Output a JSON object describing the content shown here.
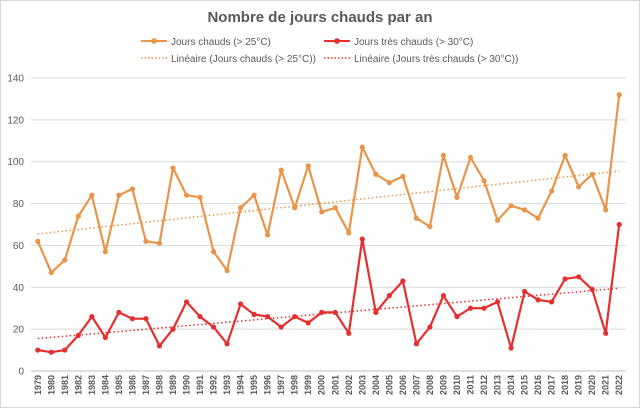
{
  "chart_data": {
    "type": "line",
    "title": "Nombre de jours chauds par an",
    "xlabel": "",
    "ylabel": "",
    "ylim": [
      0,
      140
    ],
    "yticks": [
      0,
      20,
      40,
      60,
      80,
      100,
      120,
      140
    ],
    "grid": true,
    "legend_position": "top",
    "x": [
      1979,
      1980,
      1981,
      1982,
      1983,
      1984,
      1985,
      1986,
      1987,
      1988,
      1989,
      1990,
      1991,
      1992,
      1993,
      1994,
      1995,
      1996,
      1997,
      1998,
      1999,
      2000,
      2001,
      2002,
      2003,
      2004,
      2005,
      2006,
      2007,
      2008,
      2009,
      2010,
      2011,
      2012,
      2013,
      2014,
      2015,
      2016,
      2017,
      2018,
      2019,
      2020,
      2021,
      2022
    ],
    "series": [
      {
        "name": "Jours chauds (> 25°C)",
        "color": "#e8954a",
        "values": [
          62,
          47,
          53,
          74,
          84,
          57,
          84,
          87,
          62,
          61,
          97,
          84,
          83,
          57,
          48,
          78,
          84,
          65,
          96,
          78,
          98,
          76,
          78,
          66,
          107,
          94,
          90,
          93,
          73,
          69,
          103,
          83,
          102,
          91,
          72,
          79,
          77,
          73,
          86,
          103,
          88,
          94,
          77,
          132
        ]
      },
      {
        "name": "Jours très chauds (> 30°C)",
        "color": "#e52f2f",
        "values": [
          10,
          9,
          10,
          17,
          26,
          16,
          28,
          25,
          25,
          12,
          20,
          33,
          26,
          21,
          13,
          32,
          27,
          26,
          21,
          26,
          23,
          28,
          28,
          18,
          63,
          28,
          36,
          43,
          13,
          21,
          36,
          26,
          30,
          30,
          33,
          11,
          38,
          34,
          33,
          44,
          45,
          39,
          18,
          70
        ]
      }
    ],
    "trendlines": [
      {
        "name": "Linéaire (Jours chauds (> 25°C))",
        "color": "#e8954a",
        "start": 65.5,
        "end": 95.5
      },
      {
        "name": "Linéaire (Jours très chauds (> 30°C))",
        "color": "#e52f2f",
        "start": 15.5,
        "end": 39.5
      }
    ]
  }
}
